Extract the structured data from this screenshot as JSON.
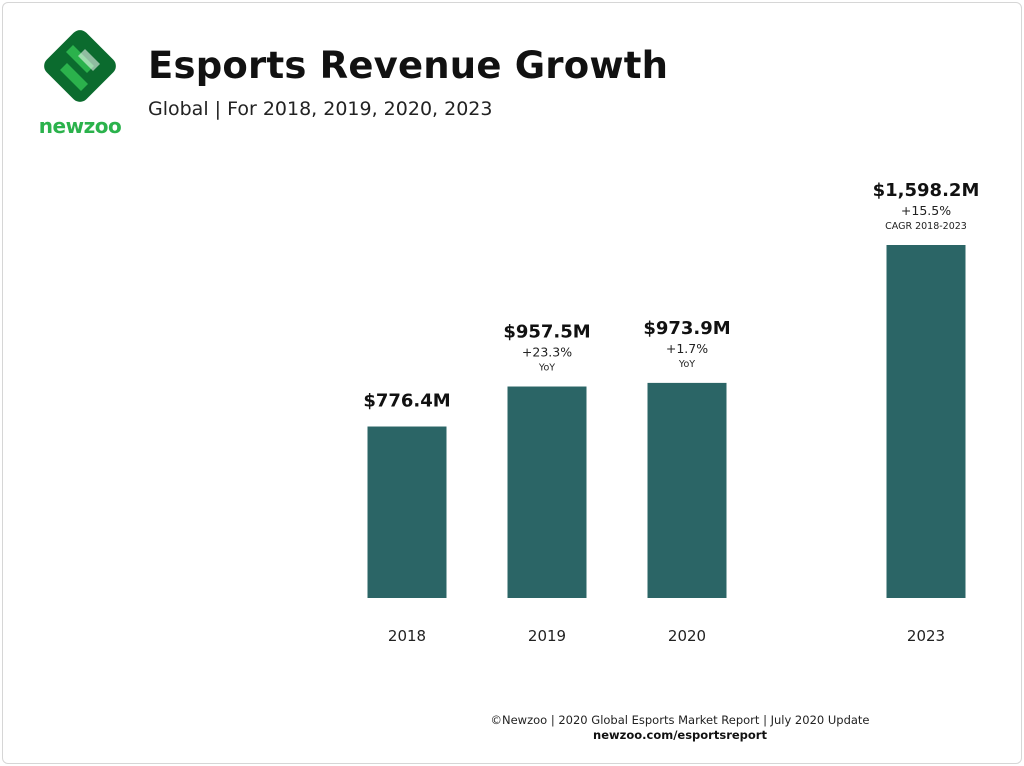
{
  "header": {
    "title": "Esports Revenue Growth",
    "subtitle": "Global | For 2018, 2019, 2020, 2023"
  },
  "brand": {
    "name": "newzoo",
    "color_dark": "#0b6b2e",
    "color_light": "#2bb24c"
  },
  "chart_data": {
    "type": "bar",
    "title": "Esports Revenue Growth",
    "subtitle": "Global | For 2018, 2019, 2020, 2023",
    "units": "USD millions",
    "categories": [
      "2018",
      "2019",
      "2020",
      "2023"
    ],
    "values": [
      776.4,
      957.5,
      973.9,
      1598.2
    ],
    "value_labels": [
      "$776.4M",
      "$957.5M",
      "$973.9M",
      "$1,598.2M"
    ],
    "growth_labels": [
      "",
      "+23.3%",
      "+1.7%",
      "+15.5%"
    ],
    "growth_notes": [
      "",
      "YoY",
      "YoY",
      "CAGR 2018-2023"
    ],
    "bar_color": "#2b6566",
    "ylim": [
      0,
      1598.2
    ],
    "grid": false,
    "xlabel": "",
    "ylabel": ""
  },
  "footer": {
    "source": "©Newzoo | 2020 Global Esports Market Report | July 2020 Update",
    "url": "newzoo.com/esportsreport"
  }
}
